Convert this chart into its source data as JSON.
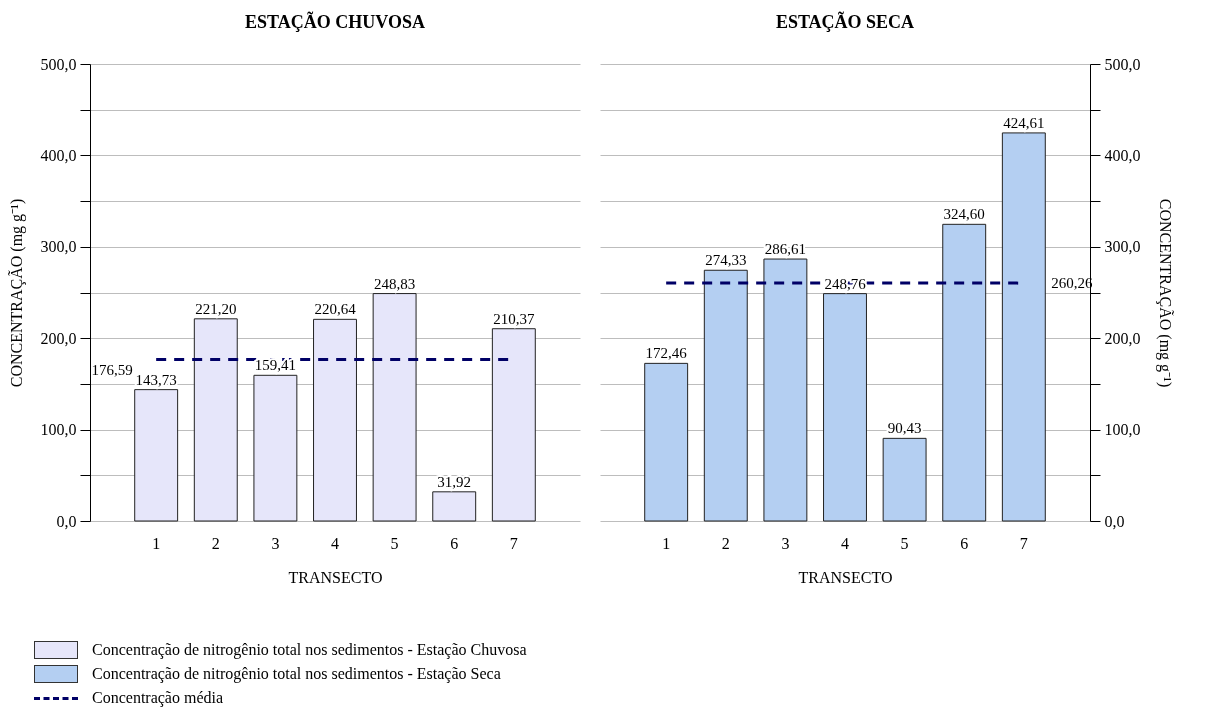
{
  "chart_data": [
    {
      "type": "bar",
      "title": "ESTAÇÃO CHUVOSA",
      "xlabel": "TRANSECTO",
      "ylabel": "CONCENTRAÇÃO (mg g⁻¹)",
      "categories": [
        "1",
        "2",
        "3",
        "4",
        "5",
        "6",
        "7"
      ],
      "series": [
        {
          "name": "Concentração de nitrogênio total nos sedimentos - Estação Chuvosa",
          "color": "#e6e6fa",
          "values": [
            143.73,
            221.2,
            159.41,
            220.64,
            248.83,
            31.92,
            210.37
          ],
          "value_labels": [
            "143,73",
            "221,20",
            "159,41",
            "220,64",
            "248,83",
            "31,92",
            "210,37"
          ]
        }
      ],
      "ylim": [
        0,
        500
      ],
      "yticks": [
        {
          "value": 0,
          "label": "0,0"
        },
        {
          "value": 50,
          "label": null
        },
        {
          "value": 100,
          "label": "100,0"
        },
        {
          "value": 150,
          "label": null
        },
        {
          "value": 200,
          "label": "200,0"
        },
        {
          "value": 250,
          "label": null
        },
        {
          "value": 300,
          "label": "300,0"
        },
        {
          "value": 350,
          "label": null
        },
        {
          "value": 400,
          "label": "400,0"
        },
        {
          "value": 450,
          "label": null
        },
        {
          "value": 500,
          "label": "500,0"
        }
      ],
      "grid": true,
      "legend": "bottom",
      "ref_lines": [
        {
          "axis": "y",
          "value": 176.59,
          "label": "176,59",
          "color": "#000066",
          "line_style": "dashed"
        }
      ],
      "annotations": [
        "Concentração média"
      ]
    },
    {
      "type": "bar",
      "title": "ESTAÇÃO SECA",
      "xlabel": "TRANSECTO",
      "y2label": "CONCENTRAÇÃO (mg g⁻¹)",
      "categories": [
        "1",
        "2",
        "3",
        "4",
        "5",
        "6",
        "7"
      ],
      "series": [
        {
          "name": "Concentração de nitrogênio total nos sedimentos - Estação Seca",
          "color": "#b4cff2",
          "values": [
            172.46,
            274.33,
            286.61,
            248.76,
            90.43,
            324.6,
            424.61
          ],
          "value_labels": [
            "172,46",
            "274,33",
            "286,61",
            "248,76",
            "90,43",
            "324,60",
            "424,61"
          ],
          "axis": "y2"
        }
      ],
      "y2lim": [
        0,
        500
      ],
      "y2ticks": [
        {
          "value": 0,
          "label": "0,0"
        },
        {
          "value": 50,
          "label": null
        },
        {
          "value": 100,
          "label": "100,0"
        },
        {
          "value": 150,
          "label": null
        },
        {
          "value": 200,
          "label": "200,0"
        },
        {
          "value": 250,
          "label": null
        },
        {
          "value": 300,
          "label": "300,0"
        },
        {
          "value": 350,
          "label": null
        },
        {
          "value": 400,
          "label": "400,0"
        },
        {
          "value": 450,
          "label": null
        },
        {
          "value": 500,
          "label": "500,0"
        }
      ],
      "grid": true,
      "legend": "bottom",
      "ref_lines": [
        {
          "axis": "y2",
          "value": 260.26,
          "label": "260,26",
          "color": "#000066",
          "line_style": "dashed"
        }
      ]
    }
  ]
}
